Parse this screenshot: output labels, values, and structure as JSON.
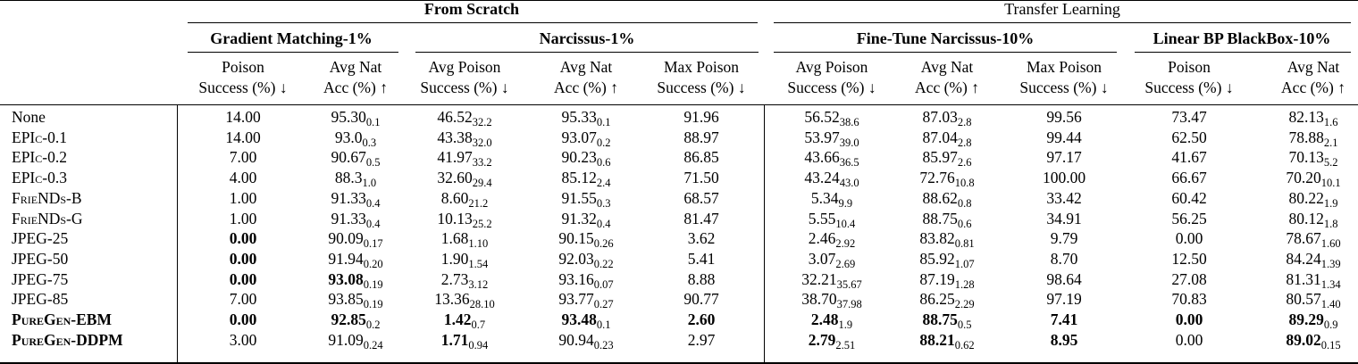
{
  "groups": [
    {
      "label": "From Scratch",
      "bold": true
    },
    {
      "label": "Transfer Learning",
      "bold": false
    }
  ],
  "subgroups": [
    "Gradient Matching-1%",
    "Narcissus-1%",
    "Fine-Tune Narcissus-10%",
    "Linear BP BlackBox-10%"
  ],
  "columns": [
    {
      "line1": "Poison",
      "line2": "Success (%) ↓"
    },
    {
      "line1": "Avg Nat",
      "line2": "Acc (%) ↑"
    },
    {
      "line1": "Avg Poison",
      "line2": "Success (%) ↓"
    },
    {
      "line1": "Avg Nat",
      "line2": "Acc (%) ↑"
    },
    {
      "line1": "Max Poison",
      "line2": "Success (%) ↓"
    },
    {
      "line1": "Avg Poison",
      "line2": "Success (%) ↓"
    },
    {
      "line1": "Avg Nat",
      "line2": "Acc (%) ↑"
    },
    {
      "line1": "Max Poison",
      "line2": "Success (%) ↓"
    },
    {
      "line1": "Poison",
      "line2": "Success (%) ↓"
    },
    {
      "line1": "Avg Nat",
      "line2": "Acc (%) ↑"
    }
  ],
  "rows": [
    {
      "label": "None",
      "sc": false,
      "bold": false,
      "cells": [
        {
          "v": "14.00"
        },
        {
          "v": "95.30",
          "s": "0.1"
        },
        {
          "v": "46.52",
          "s": "32.2"
        },
        {
          "v": "95.33",
          "s": "0.1"
        },
        {
          "v": "91.96"
        },
        {
          "v": "56.52",
          "s": "38.6"
        },
        {
          "v": "87.03",
          "s": "2.8"
        },
        {
          "v": "99.56"
        },
        {
          "v": "73.47"
        },
        {
          "v": "82.13",
          "s": "1.6"
        }
      ]
    },
    {
      "label": "EPIc-0.1",
      "sc": true,
      "bold": false,
      "cells": [
        {
          "v": "14.00"
        },
        {
          "v": "93.0",
          "s": "0.3"
        },
        {
          "v": "43.38",
          "s": "32.0"
        },
        {
          "v": "93.07",
          "s": "0.2"
        },
        {
          "v": "88.97"
        },
        {
          "v": "53.97",
          "s": "39.0"
        },
        {
          "v": "87.04",
          "s": "2.8"
        },
        {
          "v": "99.44"
        },
        {
          "v": "62.50"
        },
        {
          "v": "78.88",
          "s": "2.1"
        }
      ]
    },
    {
      "label": "EPIc-0.2",
      "sc": true,
      "bold": false,
      "cells": [
        {
          "v": "7.00"
        },
        {
          "v": "90.67",
          "s": "0.5"
        },
        {
          "v": "41.97",
          "s": "33.2"
        },
        {
          "v": "90.23",
          "s": "0.6"
        },
        {
          "v": "86.85"
        },
        {
          "v": "43.66",
          "s": "36.5"
        },
        {
          "v": "85.97",
          "s": "2.6"
        },
        {
          "v": "97.17"
        },
        {
          "v": "41.67"
        },
        {
          "v": "70.13",
          "s": "5.2"
        }
      ]
    },
    {
      "label": "EPIc-0.3",
      "sc": true,
      "bold": false,
      "cells": [
        {
          "v": "4.00"
        },
        {
          "v": "88.3",
          "s": "1.0"
        },
        {
          "v": "32.60",
          "s": "29.4"
        },
        {
          "v": "85.12",
          "s": "2.4"
        },
        {
          "v": "71.50"
        },
        {
          "v": "43.24",
          "s": "43.0"
        },
        {
          "v": "72.76",
          "s": "10.8"
        },
        {
          "v": "100.00"
        },
        {
          "v": "66.67"
        },
        {
          "v": "70.20",
          "s": "10.1"
        }
      ]
    },
    {
      "label": "FrieNDs-B",
      "sc": true,
      "bold": false,
      "cells": [
        {
          "v": "1.00"
        },
        {
          "v": "91.33",
          "s": "0.4"
        },
        {
          "v": "8.60",
          "s": "21.2"
        },
        {
          "v": "91.55",
          "s": "0.3"
        },
        {
          "v": "68.57"
        },
        {
          "v": "5.34",
          "s": "9.9"
        },
        {
          "v": "88.62",
          "s": "0.8"
        },
        {
          "v": "33.42"
        },
        {
          "v": "60.42"
        },
        {
          "v": "80.22",
          "s": "1.9"
        }
      ]
    },
    {
      "label": "FrieNDs-G",
      "sc": true,
      "bold": false,
      "cells": [
        {
          "v": "1.00"
        },
        {
          "v": "91.33",
          "s": "0.4"
        },
        {
          "v": "10.13",
          "s": "25.2"
        },
        {
          "v": "91.32",
          "s": "0.4"
        },
        {
          "v": "81.47"
        },
        {
          "v": "5.55",
          "s": "10.4"
        },
        {
          "v": "88.75",
          "s": "0.6"
        },
        {
          "v": "34.91"
        },
        {
          "v": "56.25"
        },
        {
          "v": "80.12",
          "s": "1.8"
        }
      ]
    },
    {
      "label": "JPEG-25",
      "sc": false,
      "bold": false,
      "cells": [
        {
          "v": "0.00",
          "b": true
        },
        {
          "v": "90.09",
          "s": "0.17"
        },
        {
          "v": "1.68",
          "s": "1.10"
        },
        {
          "v": "90.15",
          "s": "0.26"
        },
        {
          "v": "3.62"
        },
        {
          "v": "2.46",
          "s": "2.92"
        },
        {
          "v": "83.82",
          "s": "0.81"
        },
        {
          "v": "9.79"
        },
        {
          "v": "0.00"
        },
        {
          "v": "78.67",
          "s": "1.60"
        }
      ]
    },
    {
      "label": "JPEG-50",
      "sc": false,
      "bold": false,
      "cells": [
        {
          "v": "0.00",
          "b": true
        },
        {
          "v": "91.94",
          "s": "0.20"
        },
        {
          "v": "1.90",
          "s": "1.54"
        },
        {
          "v": "92.03",
          "s": "0.22"
        },
        {
          "v": "5.41"
        },
        {
          "v": "3.07",
          "s": "2.69"
        },
        {
          "v": "85.92",
          "s": "1.07"
        },
        {
          "v": "8.70"
        },
        {
          "v": "12.50"
        },
        {
          "v": "84.24",
          "s": "1.39"
        }
      ]
    },
    {
      "label": "JPEG-75",
      "sc": false,
      "bold": false,
      "cells": [
        {
          "v": "0.00",
          "b": true
        },
        {
          "v": "93.08",
          "s": "0.19",
          "b": true
        },
        {
          "v": "2.73",
          "s": "3.12"
        },
        {
          "v": "93.16",
          "s": "0.07"
        },
        {
          "v": "8.88"
        },
        {
          "v": "32.21",
          "s": "35.67"
        },
        {
          "v": "87.19",
          "s": "1.28"
        },
        {
          "v": "98.64"
        },
        {
          "v": "27.08"
        },
        {
          "v": "81.31",
          "s": "1.34"
        }
      ]
    },
    {
      "label": "JPEG-85",
      "sc": false,
      "bold": false,
      "cells": [
        {
          "v": "7.00"
        },
        {
          "v": "93.85",
          "s": "0.19"
        },
        {
          "v": "13.36",
          "s": "28.10"
        },
        {
          "v": "93.77",
          "s": "0.27"
        },
        {
          "v": "90.77"
        },
        {
          "v": "38.70",
          "s": "37.98"
        },
        {
          "v": "86.25",
          "s": "2.29"
        },
        {
          "v": "97.19"
        },
        {
          "v": "70.83"
        },
        {
          "v": "80.57",
          "s": "1.40"
        }
      ]
    },
    {
      "label": "PureGen-EBM",
      "sc": true,
      "bold": true,
      "cells": [
        {
          "v": "0.00",
          "b": true
        },
        {
          "v": "92.85",
          "s": "0.2",
          "b": true
        },
        {
          "v": "1.42",
          "s": "0.7",
          "b": true
        },
        {
          "v": "93.48",
          "s": "0.1",
          "b": true
        },
        {
          "v": "2.60",
          "b": true
        },
        {
          "v": "2.48",
          "s": "1.9",
          "b": true
        },
        {
          "v": "88.75",
          "s": "0.5",
          "b": true
        },
        {
          "v": "7.41",
          "b": true
        },
        {
          "v": "0.00",
          "b": true
        },
        {
          "v": "89.29",
          "s": "0.9",
          "b": true
        }
      ]
    },
    {
      "label": "PureGen-DDPM",
      "sc": true,
      "bold": true,
      "cells": [
        {
          "v": "3.00"
        },
        {
          "v": "91.09",
          "s": "0.24"
        },
        {
          "v": "1.71",
          "s": "0.94",
          "b": true
        },
        {
          "v": "90.94",
          "s": "0.23"
        },
        {
          "v": "2.97"
        },
        {
          "v": "2.79",
          "s": "2.51",
          "b": true
        },
        {
          "v": "88.21",
          "s": "0.62",
          "b": true
        },
        {
          "v": "8.95",
          "b": true
        },
        {
          "v": "0.00"
        },
        {
          "v": "89.02",
          "s": "0.15",
          "b": true
        }
      ]
    }
  ]
}
